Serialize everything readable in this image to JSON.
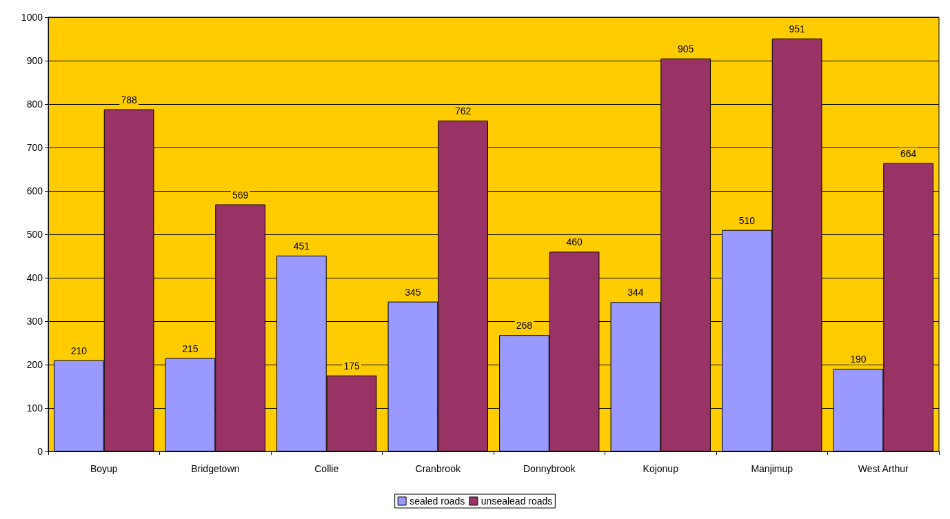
{
  "chart_data": {
    "type": "bar",
    "categories": [
      "Boyup",
      "Bridgetown",
      "Collie",
      "Cranbrook",
      "Donnybrook",
      "Kojonup",
      "Manjimup",
      "West Arthur"
    ],
    "series": [
      {
        "name": "sealed roads",
        "color": "#9999ff",
        "values": [
          210,
          215,
          451,
          345,
          268,
          344,
          510,
          190
        ]
      },
      {
        "name": "unsealead roads",
        "color": "#993366",
        "values": [
          788,
          569,
          175,
          762,
          460,
          905,
          951,
          664
        ]
      }
    ],
    "ylim": [
      0,
      1000
    ],
    "yticks": [
      0,
      100,
      200,
      300,
      400,
      500,
      600,
      700,
      800,
      900,
      1000
    ],
    "grid": "y",
    "legend": "bottom",
    "data_labels": true
  }
}
